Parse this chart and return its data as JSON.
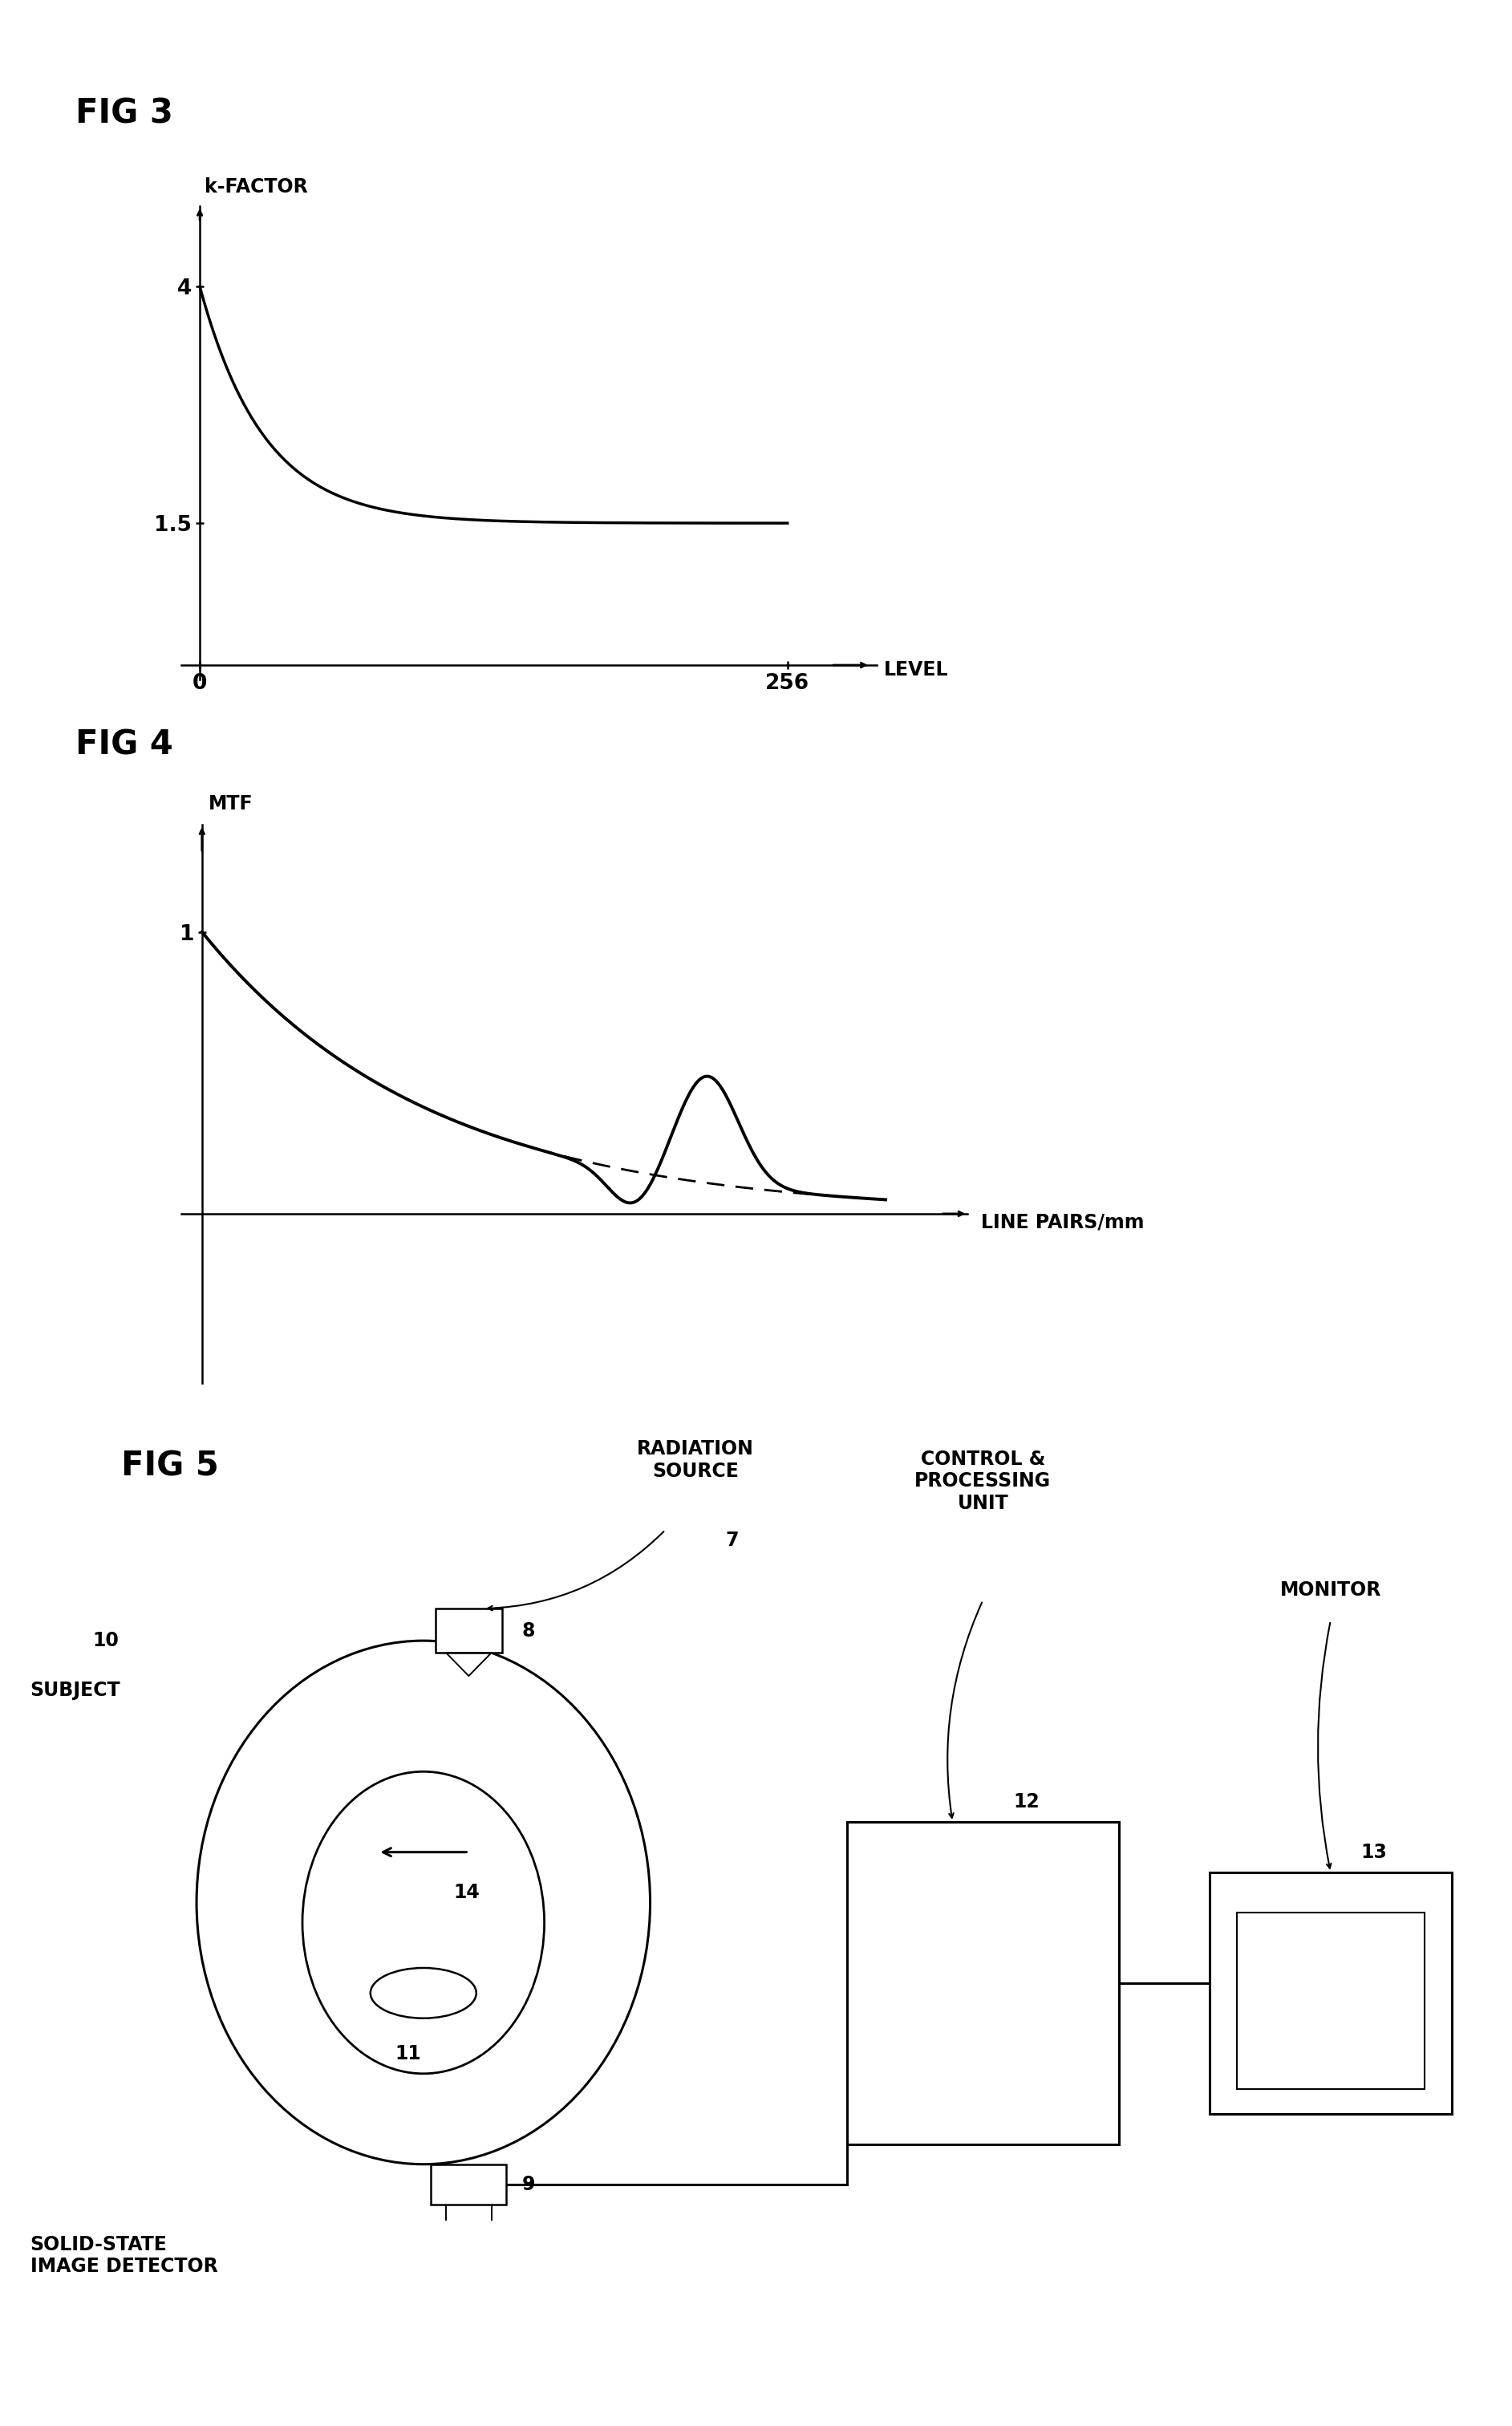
{
  "fig3_title": "FIG 3",
  "fig3_ylabel": "k-FACTOR",
  "fig3_xlabel": "LEVEL",
  "fig4_title": "FIG 4",
  "fig4_ylabel": "MTF",
  "fig4_xlabel": "LINE PAIRS/mm",
  "fig5_title": "FIG 5",
  "label_radiation": "RADIATION\nSOURCE",
  "label_control": "CONTROL &\nPROCESSING\nUNIT",
  "label_monitor": "MONITOR",
  "label_subject": "SUBJECT",
  "label_detector": "SOLID-STATE\nIMAGE DETECTOR",
  "n7": "7",
  "n8": "8",
  "n9": "9",
  "n10": "10",
  "n11": "11",
  "n12": "12",
  "n13": "13",
  "n14": "14",
  "bg": "#ffffff",
  "lc": "#000000",
  "title_fontsize": 30,
  "label_fontsize": 17,
  "tick_fontsize": 19,
  "number_fontsize": 17
}
